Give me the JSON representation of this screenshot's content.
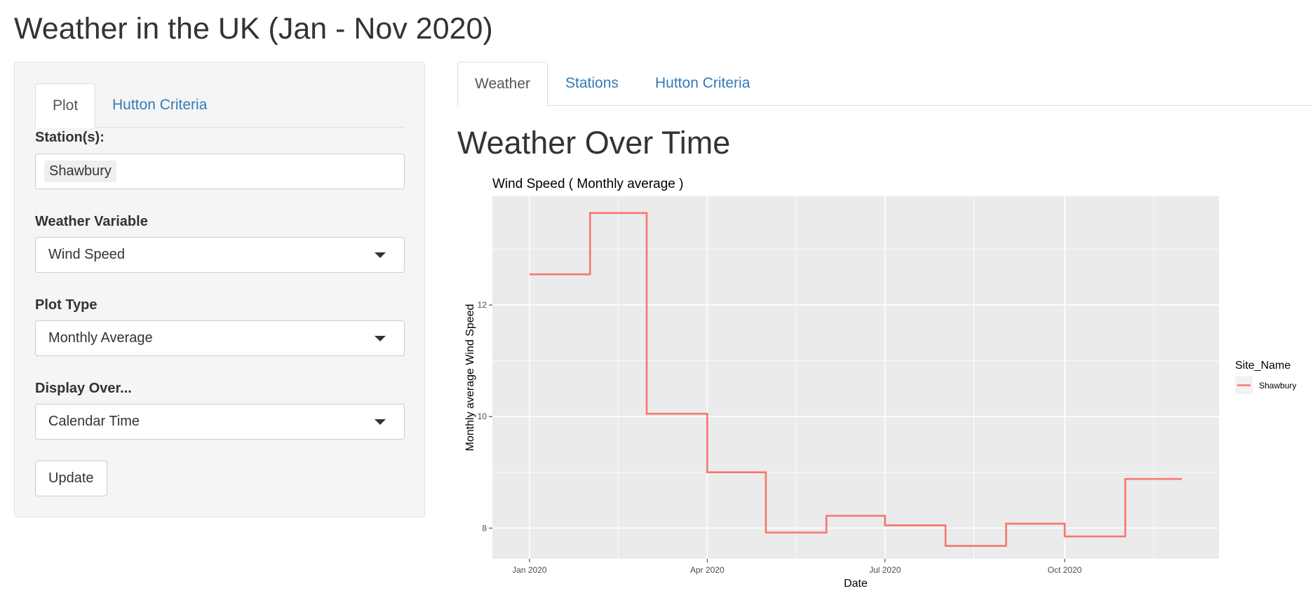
{
  "page_title": "Weather in the UK (Jan - Nov 2020)",
  "sidebar": {
    "tabs": [
      {
        "label": "Plot",
        "active": true
      },
      {
        "label": "Hutton Criteria",
        "active": false
      }
    ],
    "stations": {
      "label": "Station(s):",
      "selected": [
        "Shawbury"
      ]
    },
    "weather_variable": {
      "label": "Weather Variable",
      "value": "Wind Speed"
    },
    "plot_type": {
      "label": "Plot Type",
      "value": "Monthly Average"
    },
    "display_over": {
      "label": "Display Over...",
      "value": "Calendar Time"
    },
    "update_label": "Update"
  },
  "main": {
    "tabs": [
      {
        "label": "Weather",
        "active": true
      },
      {
        "label": "Stations",
        "active": false
      },
      {
        "label": "Hutton Criteria",
        "active": false
      }
    ],
    "section_title": "Weather Over Time"
  },
  "chart_data": {
    "type": "line",
    "step": true,
    "title": "Wind Speed  ( Monthly average )",
    "xlabel": "Date",
    "ylabel": "Monthly average Wind Speed",
    "legend_title": "Site_Name",
    "legend_position": "right",
    "grid": true,
    "x_ticks": [
      {
        "date": "2020-01-01",
        "label": "Jan 2020"
      },
      {
        "date": "2020-04-01",
        "label": "Apr 2020"
      },
      {
        "date": "2020-07-01",
        "label": "Jul 2020"
      },
      {
        "date": "2020-10-01",
        "label": "Oct 2020"
      }
    ],
    "y_ticks": [
      8,
      10,
      12
    ],
    "xlim": [
      "2019-12-13",
      "2020-12-19"
    ],
    "ylim": [
      7.45,
      13.95
    ],
    "series": [
      {
        "name": "Shawbury",
        "color": "#F8766D",
        "points": [
          {
            "date": "2020-01-01",
            "value": 12.55
          },
          {
            "date": "2020-01-31",
            "value": 12.55
          },
          {
            "date": "2020-02-01",
            "value": 13.65
          },
          {
            "date": "2020-02-29",
            "value": 13.65
          },
          {
            "date": "2020-03-01",
            "value": 10.05
          },
          {
            "date": "2020-03-31",
            "value": 10.05
          },
          {
            "date": "2020-04-01",
            "value": 9.0
          },
          {
            "date": "2020-04-30",
            "value": 9.0
          },
          {
            "date": "2020-05-01",
            "value": 7.92
          },
          {
            "date": "2020-05-31",
            "value": 7.92
          },
          {
            "date": "2020-06-01",
            "value": 8.22
          },
          {
            "date": "2020-06-30",
            "value": 8.22
          },
          {
            "date": "2020-07-01",
            "value": 8.05
          },
          {
            "date": "2020-07-31",
            "value": 8.05
          },
          {
            "date": "2020-08-01",
            "value": 7.68
          },
          {
            "date": "2020-08-31",
            "value": 7.68
          },
          {
            "date": "2020-09-01",
            "value": 8.08
          },
          {
            "date": "2020-09-30",
            "value": 8.08
          },
          {
            "date": "2020-10-01",
            "value": 7.85
          },
          {
            "date": "2020-10-31",
            "value": 7.85
          },
          {
            "date": "2020-11-01",
            "value": 8.88
          },
          {
            "date": "2020-11-30",
            "value": 8.88
          }
        ]
      }
    ]
  }
}
